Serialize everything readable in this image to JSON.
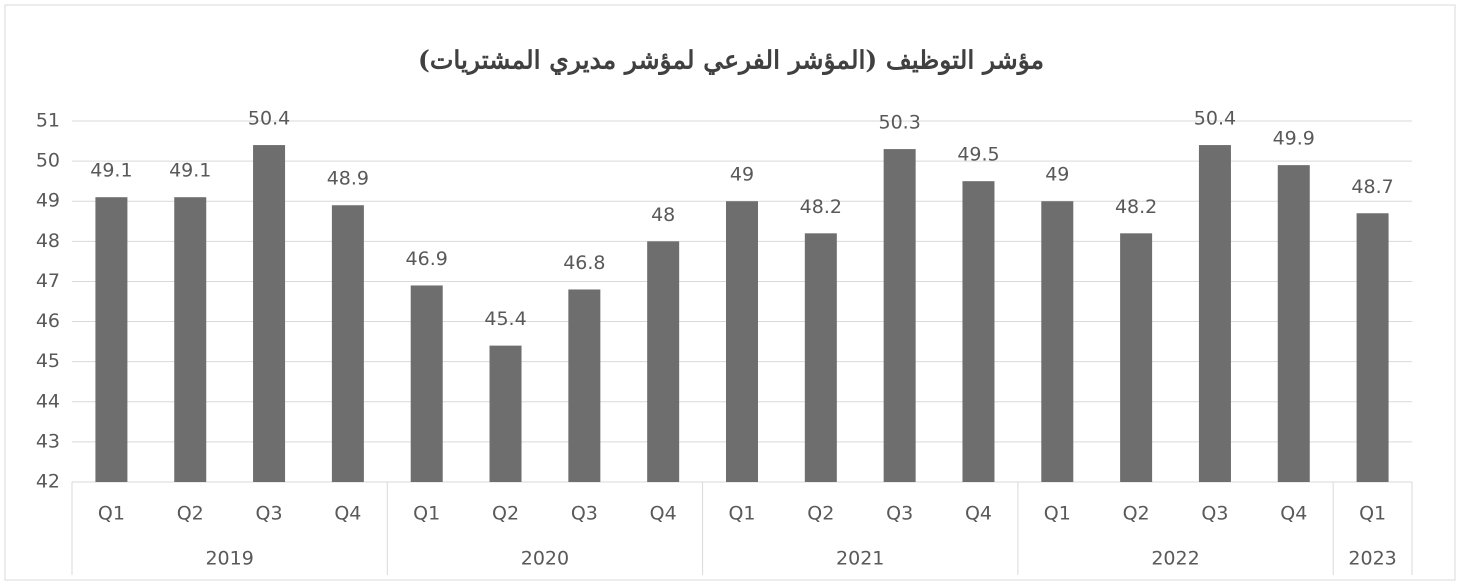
{
  "chart_data": {
    "type": "bar",
    "title": "مؤشر التوظيف (المؤشر الفرعي لمؤشر مديري المشتريات)",
    "category_groups": [
      {
        "name": "2019",
        "categories": [
          "Q1",
          "Q2",
          "Q3",
          "Q4"
        ]
      },
      {
        "name": "2020",
        "categories": [
          "Q1",
          "Q2",
          "Q3",
          "Q4"
        ]
      },
      {
        "name": "2021",
        "categories": [
          "Q1",
          "Q2",
          "Q3",
          "Q4"
        ]
      },
      {
        "name": "2022",
        "categories": [
          "Q1",
          "Q2",
          "Q3",
          "Q4"
        ]
      },
      {
        "name": "2023",
        "categories": [
          "Q1"
        ]
      }
    ],
    "values": [
      49.1,
      49.1,
      50.4,
      48.9,
      46.9,
      45.4,
      46.8,
      48,
      49,
      48.2,
      50.3,
      49.5,
      49,
      48.2,
      50.4,
      49.9,
      48.7
    ],
    "color": "#6e6e6e",
    "ylim": [
      42,
      51
    ],
    "yticks": [
      42,
      43,
      44,
      45,
      46,
      47,
      48,
      49,
      50,
      51
    ],
    "grid": true
  }
}
